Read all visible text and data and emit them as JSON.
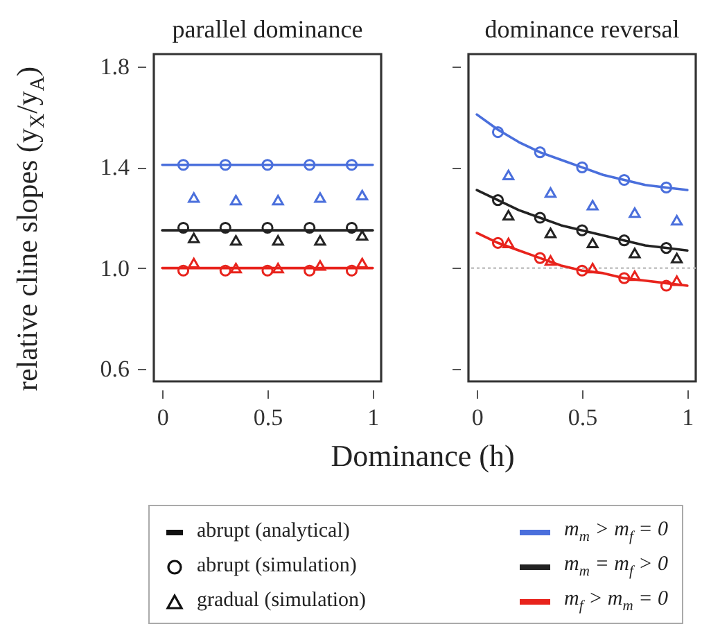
{
  "chart_data": [
    {
      "type": "line",
      "title": "parallel dominance",
      "xlabel": "Dominance (h)",
      "ylabel": "relative cline slopes (y$_{X}$/y$_{A}$)",
      "xlim": [
        -0.04,
        1.04
      ],
      "xticks": [
        0,
        0.5,
        1
      ],
      "ylim": [
        0.55,
        1.85
      ],
      "yticks": [
        {
          "value": 0.6,
          "label": "0.6"
        },
        {
          "value": 1.0,
          "label": "1.0"
        },
        {
          "value": 1.4,
          "label": "1.4"
        },
        {
          "value": 1.8,
          "label": "1.8"
        }
      ],
      "legend": "bottom",
      "annotations": [
        "abrupt (analytical)",
        "abrupt (simulation)",
        "gradual (simulation)"
      ],
      "series": [
        {
          "name": "m$_{m}$ > m$_{f}$ = 0",
          "type": "line",
          "color": "#4a6fdc",
          "x": [
            0,
            1
          ],
          "values": [
            1.41,
            1.41
          ]
        },
        {
          "type": "scatter",
          "marker": "circle",
          "color": "#4a6fdc",
          "x": [
            0.1,
            0.3,
            0.5,
            0.7,
            0.9
          ],
          "values": [
            1.41,
            1.41,
            1.41,
            1.41,
            1.41
          ]
        },
        {
          "type": "scatter",
          "marker": "triangle",
          "color": "#4a6fdc",
          "x": [
            0.15,
            0.35,
            0.55,
            0.75,
            0.95
          ],
          "values": [
            1.28,
            1.27,
            1.27,
            1.28,
            1.29
          ]
        },
        {
          "name": "m$_{m}$ = m$_{f}$ > 0",
          "type": "line",
          "color": "#222222",
          "x": [
            0,
            1
          ],
          "values": [
            1.15,
            1.15
          ]
        },
        {
          "type": "scatter",
          "marker": "circle",
          "color": "#222222",
          "x": [
            0.1,
            0.3,
            0.5,
            0.7,
            0.9
          ],
          "values": [
            1.16,
            1.16,
            1.16,
            1.16,
            1.16
          ]
        },
        {
          "type": "scatter",
          "marker": "triangle",
          "color": "#222222",
          "x": [
            0.15,
            0.35,
            0.55,
            0.75,
            0.95
          ],
          "values": [
            1.12,
            1.11,
            1.11,
            1.11,
            1.13
          ]
        },
        {
          "name": "m$_{f}$ > m$_{m}$ = 0",
          "type": "line",
          "color": "#e8231c",
          "x": [
            0,
            1
          ],
          "values": [
            1.0,
            1.0
          ]
        },
        {
          "type": "scatter",
          "marker": "circle",
          "color": "#e8231c",
          "x": [
            0.1,
            0.3,
            0.5,
            0.7,
            0.9
          ],
          "values": [
            0.99,
            0.99,
            0.99,
            0.99,
            0.99
          ]
        },
        {
          "type": "scatter",
          "marker": "triangle",
          "color": "#e8231c",
          "x": [
            0.15,
            0.35,
            0.55,
            0.75,
            0.95
          ],
          "values": [
            1.02,
            1.0,
            1.0,
            1.01,
            1.02
          ]
        }
      ]
    },
    {
      "type": "line",
      "title": "dominance reversal",
      "tick_labels": "x",
      "xlim": [
        -0.04,
        1.04
      ],
      "xticks": [
        0,
        0.5,
        1
      ],
      "ylim": [
        0.55,
        1.85
      ],
      "yticks": [
        {
          "value": 0.6,
          "label": null
        },
        {
          "value": 1.0,
          "label": null
        },
        {
          "value": 1.4,
          "label": null
        },
        {
          "value": 1.8,
          "label": null
        }
      ],
      "ref_lines": [
        {
          "axis": "y",
          "value": 1.0,
          "color": "#bbbbbb",
          "line_style": "dotted"
        }
      ],
      "series": [
        {
          "type": "line",
          "color": "#4a6fdc",
          "x": [
            0,
            0.1,
            0.2,
            0.3,
            0.4,
            0.5,
            0.6,
            0.7,
            0.8,
            0.9,
            1
          ],
          "values": [
            1.61,
            1.55,
            1.5,
            1.46,
            1.43,
            1.4,
            1.37,
            1.35,
            1.33,
            1.32,
            1.31
          ]
        },
        {
          "type": "scatter",
          "marker": "circle",
          "color": "#4a6fdc",
          "x": [
            0.1,
            0.3,
            0.5,
            0.7,
            0.9
          ],
          "values": [
            1.54,
            1.46,
            1.4,
            1.35,
            1.32
          ]
        },
        {
          "type": "scatter",
          "marker": "triangle",
          "color": "#4a6fdc",
          "x": [
            0.15,
            0.35,
            0.55,
            0.75,
            0.95
          ],
          "values": [
            1.37,
            1.3,
            1.25,
            1.22,
            1.19
          ]
        },
        {
          "type": "line",
          "color": "#222222",
          "x": [
            0,
            0.1,
            0.2,
            0.3,
            0.4,
            0.5,
            0.6,
            0.7,
            0.8,
            0.9,
            1
          ],
          "values": [
            1.31,
            1.27,
            1.23,
            1.2,
            1.17,
            1.15,
            1.13,
            1.11,
            1.09,
            1.08,
            1.07
          ]
        },
        {
          "type": "scatter",
          "marker": "circle",
          "color": "#222222",
          "x": [
            0.1,
            0.3,
            0.5,
            0.7,
            0.9
          ],
          "values": [
            1.27,
            1.2,
            1.15,
            1.11,
            1.08
          ]
        },
        {
          "type": "scatter",
          "marker": "triangle",
          "color": "#222222",
          "x": [
            0.15,
            0.35,
            0.55,
            0.75,
            0.95
          ],
          "values": [
            1.21,
            1.14,
            1.1,
            1.06,
            1.04
          ]
        },
        {
          "type": "line",
          "color": "#e8231c",
          "x": [
            0,
            0.1,
            0.2,
            0.3,
            0.4,
            0.5,
            0.6,
            0.7,
            0.8,
            0.9,
            1
          ],
          "values": [
            1.14,
            1.1,
            1.07,
            1.04,
            1.01,
            0.99,
            0.98,
            0.96,
            0.95,
            0.94,
            0.93
          ]
        },
        {
          "type": "scatter",
          "marker": "circle",
          "color": "#e8231c",
          "x": [
            0.1,
            0.3,
            0.5,
            0.7,
            0.9
          ],
          "values": [
            1.1,
            1.04,
            0.99,
            0.96,
            0.93
          ]
        },
        {
          "type": "scatter",
          "marker": "triangle",
          "color": "#e8231c",
          "x": [
            0.15,
            0.35,
            0.55,
            0.75,
            0.95
          ],
          "values": [
            1.1,
            1.03,
            1.0,
            0.97,
            0.95
          ]
        }
      ]
    }
  ]
}
